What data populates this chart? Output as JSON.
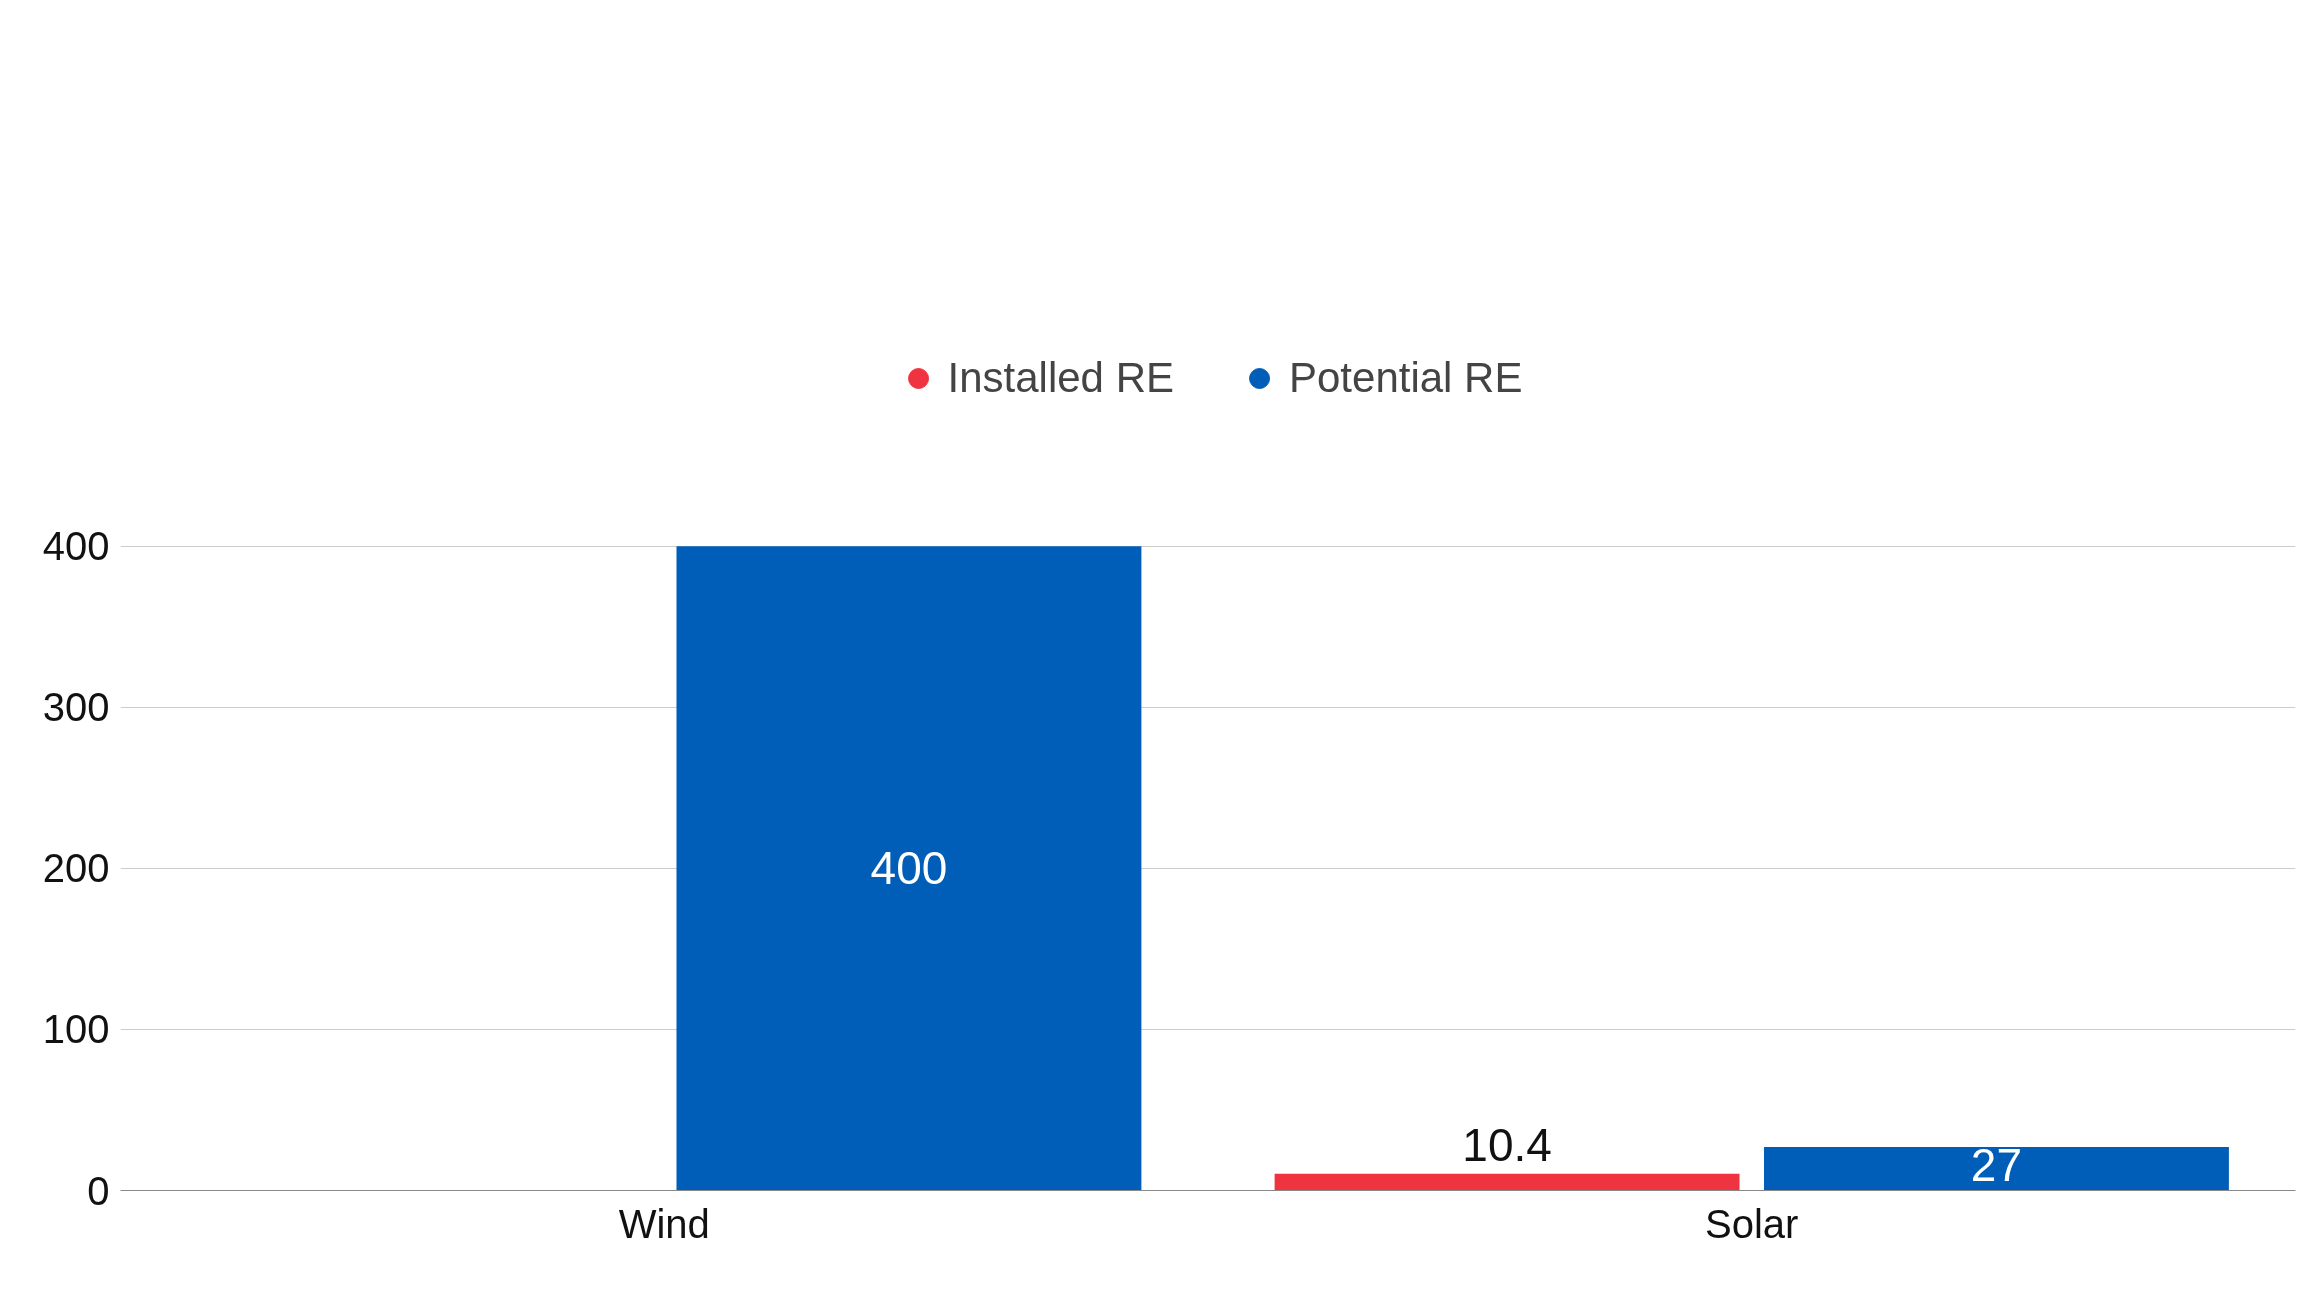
{
  "chart_data": {
    "type": "bar",
    "categories": [
      "Wind",
      "Solar"
    ],
    "series": [
      {
        "name": "Installed RE",
        "color": "#ef3340",
        "values": [
          null,
          10.4
        ]
      },
      {
        "name": "Potential RE",
        "color": "#005eb8",
        "values": [
          400,
          27
        ]
      }
    ],
    "ylim": [
      0,
      400
    ],
    "yticks": [
      0,
      100,
      200,
      300,
      400
    ],
    "grid": "y",
    "legend": "top",
    "data_labels": true
  }
}
